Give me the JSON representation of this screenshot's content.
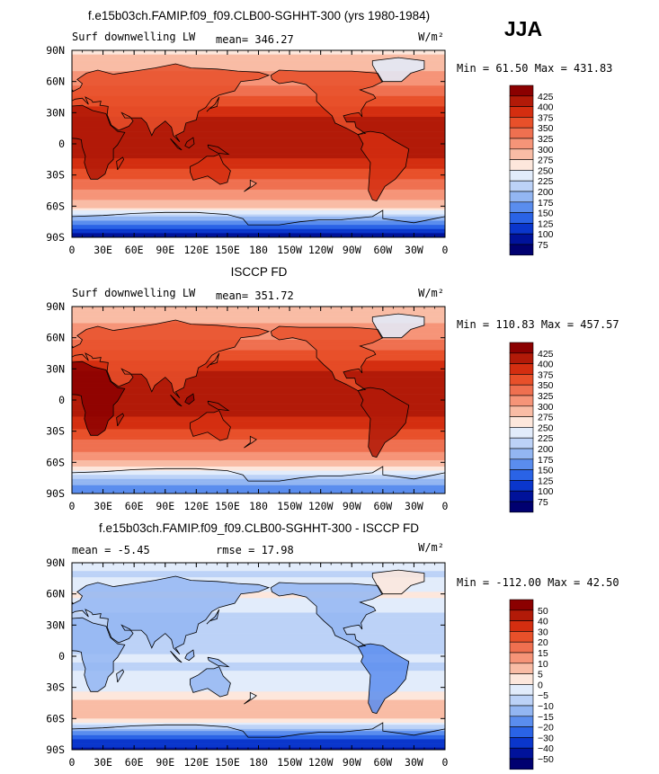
{
  "season": "JJA",
  "chart_data": [
    {
      "type": "heatmap",
      "title": "f.e15b03ch.FAMIP.f09_f09.CLB00-SGHHT-300 (yrs 1980-1984)",
      "variable": "Surf downwelling LW",
      "units": "W/m²",
      "stats": {
        "mean": "mean= 346.27",
        "minmax": "Min =  61.50 Max = 431.83"
      },
      "min": 61.5,
      "max": 431.83,
      "mean": 346.27,
      "xlim": [
        0,
        360
      ],
      "ylim": [
        -90,
        90
      ],
      "xticks": [
        "0",
        "30E",
        "60E",
        "90E",
        "120E",
        "150E",
        "180",
        "150W",
        "120W",
        "90W",
        "60W",
        "30W",
        "0"
      ],
      "yticks": [
        "90N",
        "60N",
        "30N",
        "0",
        "30S",
        "60S",
        "90S"
      ],
      "levels": [
        "425",
        "400",
        "375",
        "350",
        "325",
        "300",
        "275",
        "250",
        "225",
        "200",
        "175",
        "150",
        "125",
        "100",
        "75"
      ],
      "colors": [
        "#8b0000",
        "#b21a08",
        "#d42e10",
        "#e8502a",
        "#ef7050",
        "#f69478",
        "#f9bca5",
        "#fde7dc",
        "#e2ecfb",
        "#bcd2f7",
        "#93b6f2",
        "#5a8dee",
        "#2a63e6",
        "#0a36cc",
        "#00129a",
        "#000070"
      ],
      "lat_profile": [
        [
          -90,
          85
        ],
        [
          -80,
          130
        ],
        [
          -72,
          190
        ],
        [
          -66,
          240
        ],
        [
          -60,
          285
        ],
        [
          -50,
          315
        ],
        [
          -40,
          335
        ],
        [
          -30,
          360
        ],
        [
          -20,
          390
        ],
        [
          -10,
          405
        ],
        [
          0,
          412
        ],
        [
          10,
          418
        ],
        [
          20,
          410
        ],
        [
          30,
          392
        ],
        [
          40,
          365
        ],
        [
          50,
          338
        ],
        [
          60,
          318
        ],
        [
          70,
          300
        ],
        [
          80,
          282
        ],
        [
          90,
          270
        ]
      ]
    },
    {
      "type": "heatmap",
      "title": "ISCCP FD",
      "variable": "Surf downwelling LW",
      "units": "W/m²",
      "stats": {
        "mean": "mean= 351.72",
        "minmax": "Min = 110.83 Max = 457.57"
      },
      "min": 110.83,
      "max": 457.57,
      "mean": 351.72,
      "xlim": [
        0,
        360
      ],
      "ylim": [
        -90,
        90
      ],
      "xticks": [
        "0",
        "30E",
        "60E",
        "90E",
        "120E",
        "150E",
        "180",
        "150W",
        "120W",
        "90W",
        "60W",
        "30W",
        "0"
      ],
      "yticks": [
        "90N",
        "60N",
        "30N",
        "0",
        "30S",
        "60S",
        "90S"
      ],
      "levels": [
        "425",
        "400",
        "375",
        "350",
        "325",
        "300",
        "275",
        "250",
        "225",
        "200",
        "175",
        "150",
        "125",
        "100",
        "75"
      ],
      "colors": [
        "#8b0000",
        "#b21a08",
        "#d42e10",
        "#e8502a",
        "#ef7050",
        "#f69478",
        "#f9bca5",
        "#fde7dc",
        "#e2ecfb",
        "#bcd2f7",
        "#93b6f2",
        "#5a8dee",
        "#2a63e6",
        "#0a36cc",
        "#00129a",
        "#000070"
      ],
      "lat_profile": [
        [
          -90,
          150
        ],
        [
          -80,
          185
        ],
        [
          -72,
          225
        ],
        [
          -66,
          260
        ],
        [
          -60,
          295
        ],
        [
          -50,
          325
        ],
        [
          -40,
          345
        ],
        [
          -30,
          370
        ],
        [
          -20,
          395
        ],
        [
          -10,
          410
        ],
        [
          0,
          418
        ],
        [
          10,
          425
        ],
        [
          20,
          418
        ],
        [
          30,
          398
        ],
        [
          40,
          372
        ],
        [
          50,
          345
        ],
        [
          60,
          322
        ],
        [
          70,
          305
        ],
        [
          80,
          290
        ],
        [
          90,
          280
        ]
      ]
    },
    {
      "type": "heatmap",
      "title": "f.e15b03ch.FAMIP.f09_f09.CLB00-SGHHT-300 - ISCCP FD",
      "variable": "",
      "units": "W/m²",
      "stats": {
        "mean": "mean =   -5.45",
        "rmse": "rmse =   17.98",
        "minmax": "Min = -112.00 Max =  42.50"
      },
      "min": -112.0,
      "max": 42.5,
      "mean": -5.45,
      "rmse": 17.98,
      "xlim": [
        0,
        360
      ],
      "ylim": [
        -90,
        90
      ],
      "xticks": [
        "0",
        "30E",
        "60E",
        "90E",
        "120E",
        "150E",
        "180",
        "150W",
        "120W",
        "90W",
        "60W",
        "30W",
        "0"
      ],
      "yticks": [
        "90N",
        "60N",
        "30N",
        "0",
        "30S",
        "60S",
        "90S"
      ],
      "levels": [
        "50",
        "40",
        "30",
        "20",
        "15",
        "10",
        "5",
        "0",
        "−5",
        "−10",
        "−15",
        "−20",
        "−30",
        "−40",
        "−50"
      ],
      "colors": [
        "#8b0000",
        "#b21a08",
        "#d42e10",
        "#e8502a",
        "#ef7050",
        "#f69478",
        "#f9bca5",
        "#fde7dc",
        "#e2ecfb",
        "#bcd2f7",
        "#93b6f2",
        "#5a8dee",
        "#2a63e6",
        "#0a36cc",
        "#00129a",
        "#000070"
      ],
      "lat_profile": [
        [
          -90,
          -45
        ],
        [
          -80,
          -35
        ],
        [
          -72,
          -20
        ],
        [
          -66,
          -5
        ],
        [
          -60,
          8
        ],
        [
          -50,
          12
        ],
        [
          -40,
          6
        ],
        [
          -30,
          -3
        ],
        [
          -20,
          -6
        ],
        [
          -10,
          -8
        ],
        [
          0,
          -6
        ],
        [
          10,
          -10
        ],
        [
          20,
          -14
        ],
        [
          30,
          -12
        ],
        [
          40,
          -8
        ],
        [
          50,
          -4
        ],
        [
          60,
          2
        ],
        [
          70,
          -6
        ],
        [
          80,
          -8
        ],
        [
          90,
          -5
        ]
      ]
    }
  ]
}
